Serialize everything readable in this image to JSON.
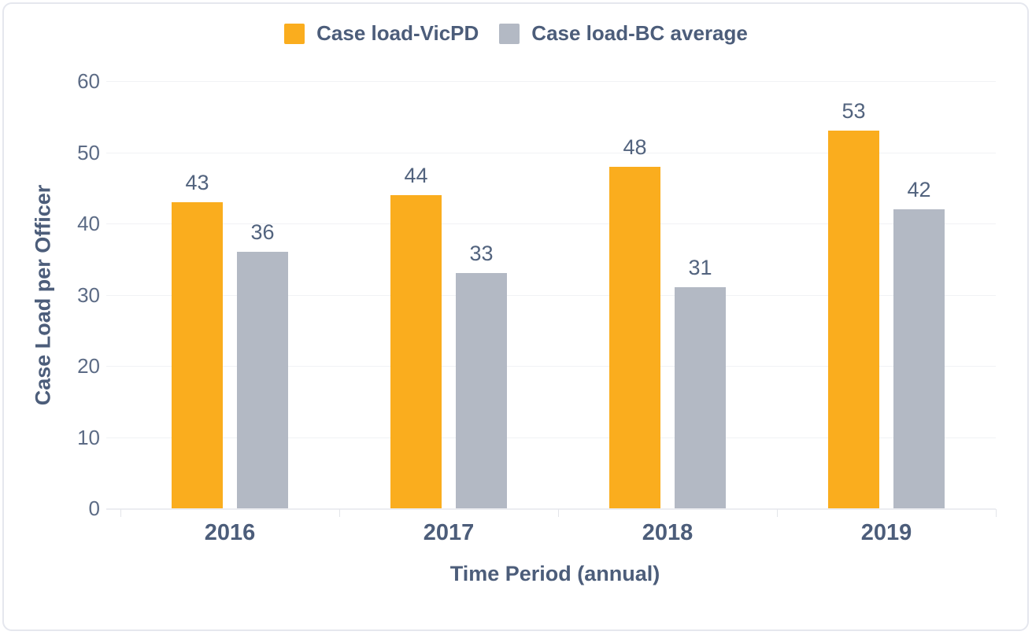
{
  "chart_data": {
    "type": "bar",
    "title": "",
    "categories": [
      "2016",
      "2017",
      "2018",
      "2019"
    ],
    "series": [
      {
        "name": "Case load-VicPD",
        "color": "#faad1e",
        "values": [
          43,
          44,
          48,
          53
        ]
      },
      {
        "name": "Case load-BC average",
        "color": "#b3b9c4",
        "values": [
          36,
          33,
          31,
          42
        ]
      }
    ],
    "xlabel": "Time Period (annual)",
    "ylabel": "Case Load per Officer",
    "ylim": [
      0,
      60
    ],
    "ytick_step": 10,
    "yticks": [
      0,
      10,
      20,
      30,
      40,
      50,
      60
    ],
    "grid": true,
    "legend_position": "top",
    "value_labels": true
  },
  "colors": {
    "legend_text": "#4c5d7a",
    "axis_title_text": "#4c5d7a",
    "tick_label_text": "#5c6b85",
    "value_label_text": "#52637e",
    "gridline": "#f1f2f5",
    "card_border": "#e5e7ee",
    "background": "#ffffff"
  }
}
